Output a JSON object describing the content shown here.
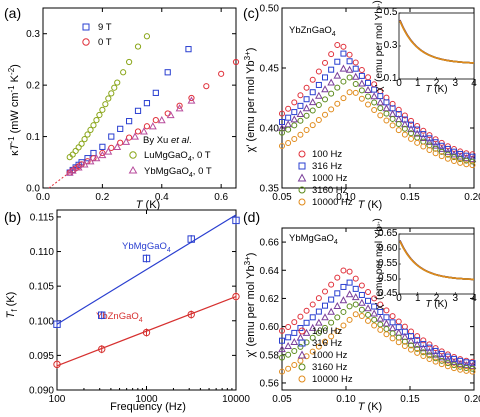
{
  "chart_data": [
    {
      "id": "a",
      "panel_label": "(a)",
      "type": "scatter",
      "xlabel": "T (K)",
      "ylabel": "κ T⁻¹ (mW cm⁻¹ K⁻²)",
      "xlim": [
        0,
        0.65
      ],
      "ylim": [
        0,
        0.35
      ],
      "xticks": [
        0.0,
        0.2,
        0.4,
        0.6
      ],
      "yticks": [
        0.0,
        0.1,
        0.2,
        0.3
      ],
      "xtick_labels": [
        "0.0",
        "0.2",
        "0.4",
        "0.6"
      ],
      "ytick_labels": [
        "0.0",
        "0.1",
        "0.2",
        "0.3"
      ],
      "legend_note": "By Xu et al.",
      "series": [
        {
          "name": "9 T",
          "color": "#2a3fd0",
          "marker": "square",
          "x": [
            0.09,
            0.1,
            0.11,
            0.12,
            0.13,
            0.15,
            0.17,
            0.2,
            0.23,
            0.26,
            0.29,
            0.32,
            0.35,
            0.38,
            0.42,
            0.49
          ],
          "y": [
            0.03,
            0.035,
            0.04,
            0.045,
            0.05,
            0.058,
            0.068,
            0.08,
            0.1,
            0.115,
            0.13,
            0.15,
            0.165,
            0.185,
            0.225,
            0.27
          ]
        },
        {
          "name": "0 T",
          "color": "#e0303a",
          "marker": "circle",
          "x": [
            0.09,
            0.1,
            0.11,
            0.12,
            0.13,
            0.15,
            0.17,
            0.2,
            0.23,
            0.26,
            0.29,
            0.32,
            0.35,
            0.38,
            0.42,
            0.46,
            0.5,
            0.55,
            0.6,
            0.65
          ],
          "y": [
            0.03,
            0.034,
            0.038,
            0.042,
            0.046,
            0.052,
            0.058,
            0.068,
            0.078,
            0.088,
            0.098,
            0.11,
            0.12,
            0.132,
            0.145,
            0.16,
            0.175,
            0.198,
            0.222,
            0.245
          ]
        },
        {
          "name": "LuMgGaO4, 0 T",
          "color": "#8aa61a",
          "marker": "circle",
          "x": [
            0.09,
            0.1,
            0.11,
            0.12,
            0.13,
            0.14,
            0.15,
            0.16,
            0.17,
            0.18,
            0.19,
            0.2,
            0.21,
            0.22,
            0.23,
            0.24,
            0.25,
            0.27,
            0.29,
            0.32,
            0.35
          ],
          "y": [
            0.06,
            0.065,
            0.072,
            0.079,
            0.086,
            0.095,
            0.104,
            0.113,
            0.122,
            0.132,
            0.142,
            0.152,
            0.163,
            0.174,
            0.184,
            0.195,
            0.205,
            0.225,
            0.245,
            0.275,
            0.295
          ]
        },
        {
          "name": "YbMgGaO4, 0 T",
          "color": "#b84b9c",
          "marker": "triangle",
          "x": [
            0.09,
            0.1,
            0.12,
            0.14,
            0.16,
            0.18,
            0.2,
            0.22,
            0.25,
            0.28,
            0.31,
            0.34,
            0.37,
            0.4,
            0.43,
            0.46,
            0.5
          ],
          "y": [
            0.03,
            0.034,
            0.04,
            0.046,
            0.052,
            0.058,
            0.064,
            0.071,
            0.08,
            0.09,
            0.1,
            0.11,
            0.12,
            0.132,
            0.142,
            0.155,
            0.17
          ]
        }
      ]
    },
    {
      "id": "b",
      "panel_label": "(b)",
      "type": "scatter",
      "xlabel": "Frequency (Hz)",
      "ylabel": "T_f (K)",
      "xscale": "log",
      "xlim": [
        100,
        10000
      ],
      "ylim": [
        0.09,
        0.116
      ],
      "xticks": [
        100,
        1000,
        10000
      ],
      "xtick_labels": [
        "100",
        "1000",
        "10000"
      ],
      "yticks": [
        0.09,
        0.095,
        0.1,
        0.105,
        0.11,
        0.115
      ],
      "ytick_labels": [
        "0.090",
        "0.095",
        "0.100",
        "0.105",
        "0.110",
        "0.115"
      ],
      "series": [
        {
          "name": "YbMgGaO4",
          "color": "#2a3fd0",
          "marker": "square",
          "x": [
            100,
            316,
            1000,
            3160,
            10000
          ],
          "y": [
            0.0995,
            0.1008,
            0.109,
            0.1118,
            0.1145
          ],
          "fit": [
            [
              100,
              0.0995
            ],
            [
              10000,
              0.1153
            ]
          ]
        },
        {
          "name": "YbZnGaO4",
          "color": "#d6302f",
          "marker": "circle",
          "x": [
            100,
            316,
            1000,
            3160,
            10000
          ],
          "y": [
            0.0937,
            0.0959,
            0.0983,
            0.1009,
            0.1035
          ],
          "fit": [
            [
              100,
              0.0935
            ],
            [
              10000,
              0.1035
            ]
          ]
        }
      ]
    },
    {
      "id": "c",
      "panel_label": "(c)",
      "compound": "YbZnGaO4",
      "type": "scatter",
      "xlabel": "T (K)",
      "ylabel": "χ' (emu per mol Yb³⁺)",
      "xlim": [
        0.05,
        0.2
      ],
      "ylim": [
        0.35,
        0.5
      ],
      "xticks": [
        0.05,
        0.1,
        0.15,
        0.2
      ],
      "xtick_labels": [
        "0.05",
        "0.10",
        "0.15",
        "0.20"
      ],
      "yticks": [
        0.35,
        0.4,
        0.45,
        0.5
      ],
      "ytick_labels": [
        "0.35",
        "0.40",
        "0.45",
        "0.50"
      ],
      "series": [
        {
          "name": "100 Hz",
          "color": "#e0303a",
          "marker": "circle",
          "peak_T": 0.095,
          "peak": 0.472,
          "base": 0.412,
          "tail": 0.378
        },
        {
          "name": "316 Hz",
          "color": "#2a3fd0",
          "marker": "square",
          "peak_T": 0.098,
          "peak": 0.462,
          "base": 0.405,
          "tail": 0.376
        },
        {
          "name": "1000 Hz",
          "color": "#7a3f9a",
          "marker": "triangle",
          "peak_T": 0.1,
          "peak": 0.452,
          "base": 0.4,
          "tail": 0.374
        },
        {
          "name": "3160 Hz",
          "color": "#5a8a1a",
          "marker": "circle",
          "peak_T": 0.102,
          "peak": 0.443,
          "base": 0.396,
          "tail": 0.372
        },
        {
          "name": "10000 Hz",
          "color": "#e08a1a",
          "marker": "circle",
          "peak_T": 0.105,
          "peak": 0.432,
          "base": 0.385,
          "tail": 0.369
        }
      ],
      "inset": {
        "xlabel": "T (K)",
        "ylabel": "χ' (emu per mol Yb³⁺)",
        "xlim": [
          0,
          4
        ],
        "ylim": [
          0.1,
          0.5
        ],
        "xticks": [
          0,
          1,
          2,
          3,
          4
        ],
        "yticks": [
          0.1,
          0.3,
          0.5
        ],
        "ytick_labels": [
          "0.1",
          "0.3",
          "0.5"
        ]
      }
    },
    {
      "id": "d",
      "panel_label": "(d)",
      "compound": "YbMgGaO4",
      "type": "scatter",
      "xlabel": "T (K)",
      "ylabel": "χ' (emu per mol Yb³⁺)",
      "xlim": [
        0.05,
        0.2
      ],
      "ylim": [
        0.555,
        0.67
      ],
      "xticks": [
        0.05,
        0.1,
        0.15,
        0.2
      ],
      "xtick_labels": [
        "0.05",
        "0.10",
        "0.15",
        "0.20"
      ],
      "yticks": [
        0.56,
        0.58,
        0.6,
        0.62,
        0.64,
        0.66
      ],
      "ytick_labels": [
        "0.56",
        "0.58",
        "0.60",
        "0.62",
        "0.64",
        "0.66"
      ],
      "series": [
        {
          "name": "100 Hz",
          "color": "#e0303a",
          "marker": "circle",
          "peak_T": 0.1,
          "peak": 0.642,
          "base": 0.597,
          "tail": 0.575
        },
        {
          "name": "316 Hz",
          "color": "#2a3fd0",
          "marker": "square",
          "peak_T": 0.102,
          "peak": 0.632,
          "base": 0.59,
          "tail": 0.574
        },
        {
          "name": "1000 Hz",
          "color": "#7a3f9a",
          "marker": "triangle",
          "peak_T": 0.104,
          "peak": 0.624,
          "base": 0.584,
          "tail": 0.572
        },
        {
          "name": "3160 Hz",
          "color": "#5a8a1a",
          "marker": "circle",
          "peak_T": 0.106,
          "peak": 0.617,
          "base": 0.578,
          "tail": 0.57
        },
        {
          "name": "10000 Hz",
          "color": "#e08a1a",
          "marker": "circle",
          "peak_T": 0.109,
          "peak": 0.61,
          "base": 0.568,
          "tail": 0.568
        }
      ],
      "inset": {
        "xlabel": "T (K)",
        "ylabel": "χ' (emu per mol Yb³⁺)",
        "xlim": [
          0,
          4
        ],
        "ylim": [
          0.45,
          0.65
        ],
        "xticks": [
          0,
          1,
          2,
          3,
          4
        ],
        "yticks": [
          0.45,
          0.5,
          0.55,
          0.6,
          0.65
        ],
        "ytick_labels": [
          "0.45",
          "0.50",
          "0.55",
          "0.60",
          "0.65"
        ]
      }
    }
  ]
}
